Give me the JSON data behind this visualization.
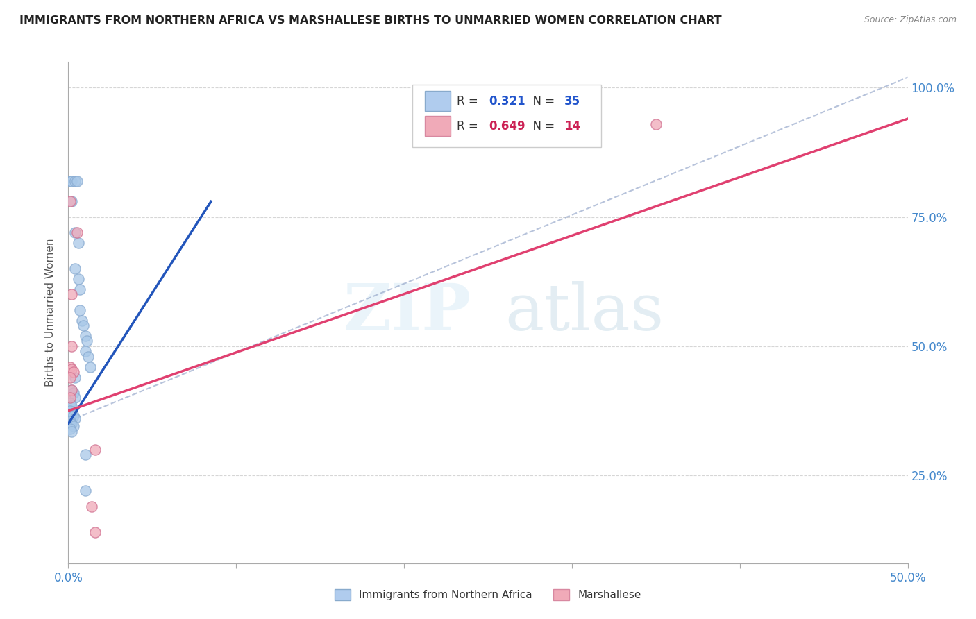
{
  "title": "IMMIGRANTS FROM NORTHERN AFRICA VS MARSHALLESE BIRTHS TO UNMARRIED WOMEN CORRELATION CHART",
  "source": "Source: ZipAtlas.com",
  "yaxis_label": "Births to Unmarried Women",
  "r_blue": 0.321,
  "n_blue": 35,
  "r_pink": 0.649,
  "n_pink": 14,
  "legend_blue": "Immigrants from Northern Africa",
  "legend_pink": "Marshallese",
  "blue_color": "#a8c8e8",
  "pink_color": "#f0a8b8",
  "blue_line_color": "#2255bb",
  "pink_line_color": "#e04070",
  "dash_color": "#99aacc",
  "blue_scatter": [
    [
      0.001,
      0.82
    ],
    [
      0.002,
      0.82
    ],
    [
      0.004,
      0.82
    ],
    [
      0.005,
      0.82
    ],
    [
      0.002,
      0.78
    ],
    [
      0.004,
      0.72
    ],
    [
      0.006,
      0.7
    ],
    [
      0.004,
      0.65
    ],
    [
      0.006,
      0.63
    ],
    [
      0.007,
      0.61
    ],
    [
      0.007,
      0.57
    ],
    [
      0.008,
      0.55
    ],
    [
      0.009,
      0.54
    ],
    [
      0.01,
      0.52
    ],
    [
      0.011,
      0.51
    ],
    [
      0.01,
      0.49
    ],
    [
      0.012,
      0.48
    ],
    [
      0.013,
      0.46
    ],
    [
      0.004,
      0.44
    ],
    [
      0.002,
      0.415
    ],
    [
      0.003,
      0.41
    ],
    [
      0.004,
      0.4
    ],
    [
      0.001,
      0.39
    ],
    [
      0.002,
      0.385
    ],
    [
      0.001,
      0.375
    ],
    [
      0.002,
      0.37
    ],
    [
      0.003,
      0.365
    ],
    [
      0.004,
      0.36
    ],
    [
      0.001,
      0.355
    ],
    [
      0.002,
      0.35
    ],
    [
      0.003,
      0.345
    ],
    [
      0.001,
      0.34
    ],
    [
      0.002,
      0.335
    ],
    [
      0.01,
      0.29
    ],
    [
      0.01,
      0.22
    ]
  ],
  "pink_scatter": [
    [
      0.001,
      0.78
    ],
    [
      0.005,
      0.72
    ],
    [
      0.002,
      0.6
    ],
    [
      0.002,
      0.5
    ],
    [
      0.001,
      0.46
    ],
    [
      0.002,
      0.455
    ],
    [
      0.003,
      0.45
    ],
    [
      0.001,
      0.44
    ],
    [
      0.002,
      0.415
    ],
    [
      0.001,
      0.4
    ],
    [
      0.016,
      0.3
    ],
    [
      0.014,
      0.19
    ],
    [
      0.016,
      0.14
    ],
    [
      0.35,
      0.93
    ]
  ],
  "xlim": [
    0.0,
    0.5
  ],
  "ylim": [
    0.08,
    1.05
  ],
  "xticks": [
    0.0,
    0.1,
    0.2,
    0.3,
    0.4,
    0.5
  ],
  "yticks": [
    0.25,
    0.5,
    0.75,
    1.0
  ],
  "ytick_labels": [
    "25.0%",
    "50.0%",
    "75.0%",
    "100.0%"
  ],
  "xtick_labels": [
    "0.0%",
    "",
    "",
    "",
    "",
    "50.0%"
  ],
  "blue_line_x0": 0.0,
  "blue_line_y0": 0.35,
  "blue_line_x1": 0.085,
  "blue_line_y1": 0.78,
  "pink_line_x0": 0.0,
  "pink_line_y0": 0.375,
  "pink_line_x1": 0.5,
  "pink_line_y1": 0.94,
  "dash_line_x0": 0.0,
  "dash_line_y0": 0.355,
  "dash_line_x1": 0.5,
  "dash_line_y1": 1.02,
  "watermark_zip": "ZIP",
  "watermark_atlas": "atlas",
  "background_color": "#ffffff",
  "grid_color": "#cccccc"
}
